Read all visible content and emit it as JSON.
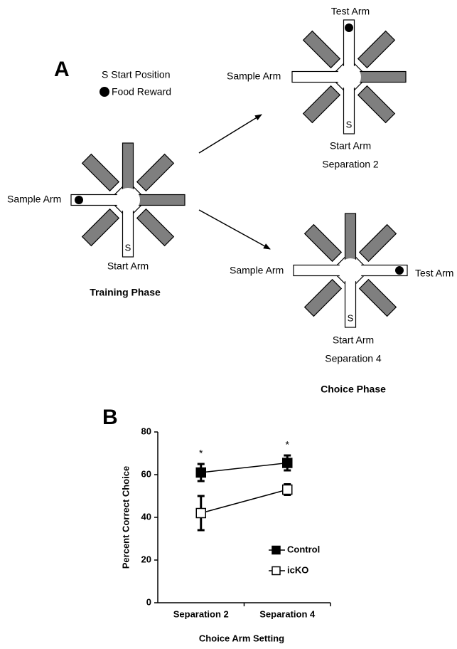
{
  "panel_a": {
    "label": "A",
    "legend": {
      "start": "S Start Position",
      "food": "Food Reward"
    },
    "training": {
      "sample_arm": "Sample Arm",
      "start_arm": "Start Arm",
      "start_marker": "S",
      "title": "Training Phase"
    },
    "choice": {
      "title": "Choice Phase",
      "trials": [
        {
          "test_arm": "Test Arm",
          "sample_arm": "Sample Arm",
          "start_arm": "Start Arm",
          "start_marker": "S",
          "name": "Separation 2"
        },
        {
          "test_arm": "Test Arm",
          "sample_arm": "Sample Arm",
          "start_arm": "Start Arm",
          "start_marker": "S",
          "name": "Separation 4"
        }
      ]
    }
  },
  "chart_data": {
    "type": "line",
    "panel_label": "B",
    "x_label": "Choice Arm Setting",
    "y_label": "Percent Correct Choice",
    "categories": [
      "Separation 2",
      "Separation 4"
    ],
    "series": [
      {
        "name": "Control",
        "color": "#000000",
        "marker_fill": "#000000",
        "values": [
          61,
          65.5
        ],
        "errors": [
          4,
          3.5
        ]
      },
      {
        "name": "icKO",
        "color": "#000000",
        "marker_fill": "#ffffff",
        "values": [
          42,
          53
        ],
        "errors": [
          8,
          2.5
        ]
      }
    ],
    "annotations": [
      "*",
      "*"
    ],
    "ylim": [
      0,
      80
    ],
    "yticks": [
      0,
      20,
      40,
      60,
      80
    ]
  }
}
